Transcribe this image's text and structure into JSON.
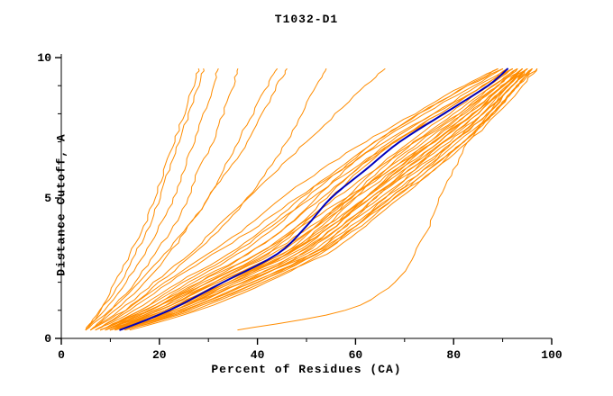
{
  "chart_data": {
    "type": "line",
    "title": "T1032-D1",
    "xlabel": "Percent of Residues (CA)",
    "ylabel": "Distance Cutoff, A",
    "xlim": [
      0,
      100
    ],
    "ylim": [
      0,
      10
    ],
    "xticks": [
      0,
      20,
      40,
      60,
      80,
      100
    ],
    "xminor": [
      10,
      30,
      50,
      70,
      90
    ],
    "yticks": [
      0,
      5,
      10
    ],
    "yminor": [
      1,
      2,
      3,
      4,
      6,
      7,
      8,
      9
    ],
    "grid": false,
    "legend": "none",
    "colors": {
      "models": "#ff8c00",
      "highlight": "#0000bb",
      "axis": "#000000"
    },
    "y_levels": [
      0.3,
      1,
      2,
      3,
      4,
      5,
      6,
      7,
      8,
      9,
      9.6
    ],
    "series": [
      {
        "name": "all-models",
        "color": "#ff8c00",
        "width": 1,
        "curves": [
          [
            9,
            18,
            28,
            38,
            46,
            52,
            58,
            65,
            74,
            84,
            90
          ],
          [
            10,
            20,
            31,
            42,
            49,
            55,
            61,
            68,
            77,
            86,
            92
          ],
          [
            8,
            16,
            26,
            36,
            44,
            50,
            57,
            64,
            73,
            83,
            89
          ],
          [
            11,
            23,
            35,
            46,
            53,
            59,
            65,
            72,
            80,
            88,
            93
          ],
          [
            10,
            21,
            33,
            45,
            52,
            58,
            64,
            71,
            79,
            87,
            92
          ],
          [
            12,
            25,
            38,
            49,
            56,
            62,
            68,
            75,
            82,
            89,
            94
          ],
          [
            9,
            19,
            30,
            41,
            48,
            54,
            60,
            67,
            76,
            85,
            91
          ],
          [
            13,
            26,
            40,
            51,
            58,
            64,
            70,
            77,
            84,
            90,
            95
          ],
          [
            10,
            22,
            34,
            46,
            54,
            60,
            66,
            73,
            81,
            88,
            93
          ],
          [
            8,
            17,
            27,
            38,
            46,
            53,
            60,
            68,
            77,
            86,
            92
          ],
          [
            11,
            24,
            37,
            48,
            56,
            62,
            69,
            76,
            83,
            90,
            94
          ],
          [
            9,
            20,
            32,
            44,
            52,
            59,
            66,
            74,
            82,
            89,
            93
          ],
          [
            14,
            28,
            42,
            53,
            60,
            66,
            72,
            78,
            85,
            91,
            95
          ],
          [
            10,
            21,
            34,
            47,
            55,
            62,
            69,
            77,
            84,
            90,
            94
          ],
          [
            12,
            26,
            40,
            52,
            60,
            67,
            74,
            80,
            86,
            92,
            96
          ],
          [
            8,
            18,
            30,
            42,
            51,
            59,
            67,
            75,
            83,
            90,
            94
          ],
          [
            11,
            23,
            36,
            49,
            57,
            64,
            71,
            78,
            85,
            91,
            95
          ],
          [
            9,
            19,
            31,
            43,
            52,
            60,
            68,
            76,
            84,
            90,
            94
          ],
          [
            13,
            27,
            41,
            54,
            62,
            69,
            76,
            82,
            88,
            93,
            96
          ],
          [
            10,
            22,
            35,
            48,
            57,
            65,
            73,
            80,
            87,
            92,
            95
          ],
          [
            7,
            15,
            24,
            34,
            42,
            49,
            56,
            64,
            73,
            83,
            90
          ],
          [
            6,
            13,
            21,
            30,
            38,
            45,
            53,
            62,
            72,
            82,
            89
          ],
          [
            8,
            16,
            25,
            35,
            43,
            51,
            59,
            68,
            78,
            87,
            92
          ],
          [
            7,
            14,
            22,
            31,
            40,
            48,
            57,
            66,
            76,
            86,
            91
          ],
          [
            12,
            24,
            37,
            50,
            58,
            66,
            74,
            81,
            88,
            93,
            96
          ],
          [
            11,
            25,
            39,
            52,
            61,
            68,
            75,
            82,
            88,
            93,
            97
          ],
          [
            10,
            23,
            37,
            51,
            60,
            68,
            76,
            83,
            89,
            94,
            97
          ],
          [
            5,
            8,
            12,
            15,
            18,
            20,
            22,
            24,
            26,
            28,
            29
          ],
          [
            5,
            9,
            13,
            17,
            20,
            23,
            25,
            27,
            29,
            31,
            32
          ],
          [
            6,
            10,
            15,
            19,
            23,
            26,
            28,
            31,
            33,
            35,
            36
          ],
          [
            5,
            8,
            11,
            14,
            17,
            19,
            21,
            23,
            25,
            27,
            28
          ],
          [
            6,
            11,
            17,
            22,
            26,
            30,
            33,
            36,
            39,
            42,
            44
          ],
          [
            5,
            10,
            16,
            21,
            26,
            30,
            34,
            38,
            41,
            44,
            46
          ],
          [
            7,
            13,
            20,
            27,
            33,
            38,
            42,
            46,
            49,
            52,
            54
          ],
          [
            6,
            12,
            19,
            26,
            32,
            38,
            44,
            50,
            56,
            62,
            66
          ],
          [
            36,
            58,
            68,
            72,
            75,
            77,
            80,
            83,
            87,
            91,
            94
          ],
          [
            9,
            18,
            29,
            40,
            48,
            56,
            64,
            72,
            81,
            89,
            93
          ],
          [
            11,
            22,
            34,
            46,
            55,
            63,
            71,
            79,
            86,
            92,
            95
          ],
          [
            10,
            20,
            32,
            45,
            54,
            62,
            70,
            78,
            86,
            91,
            95
          ],
          [
            8,
            17,
            28,
            40,
            49,
            58,
            67,
            76,
            84,
            91,
            94
          ],
          [
            12,
            25,
            39,
            51,
            59,
            67,
            75,
            82,
            88,
            93,
            96
          ],
          [
            9,
            21,
            33,
            46,
            55,
            63,
            72,
            80,
            87,
            92,
            96
          ]
        ]
      },
      {
        "name": "highlighted-model",
        "color": "#0000bb",
        "width": 2,
        "curves": [
          [
            12,
            22,
            33,
            44,
            50,
            55,
            62,
            69,
            78,
            87,
            91
          ]
        ]
      }
    ]
  }
}
